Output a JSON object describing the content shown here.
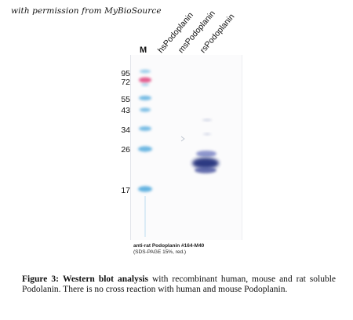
{
  "permission_note": "with permission from MyBioSource",
  "figure": {
    "marker_lane_label": "M",
    "lane_labels": [
      "hsPodoplanin",
      "msPodoplanin",
      "rsPodoplanin"
    ],
    "molecular_weights": [
      "95",
      "72",
      "55",
      "43",
      "34",
      "26",
      "17"
    ],
    "marker_colors": {
      "blue": "#4aa6dc",
      "pink": "#e0457e",
      "sample": "#1c2a78"
    },
    "blot_caption_line1": "anti-rat Podoplanin #164-M40",
    "blot_caption_line2": "(SDS-PAGE 15%, red.)"
  },
  "caption": {
    "label": "Figure 3:",
    "bold_title": "Western blot analysis",
    "text": "with recombinant human, mouse and rat soluble Podolanin. There is no cross reaction with human and mouse Podoplanin."
  }
}
